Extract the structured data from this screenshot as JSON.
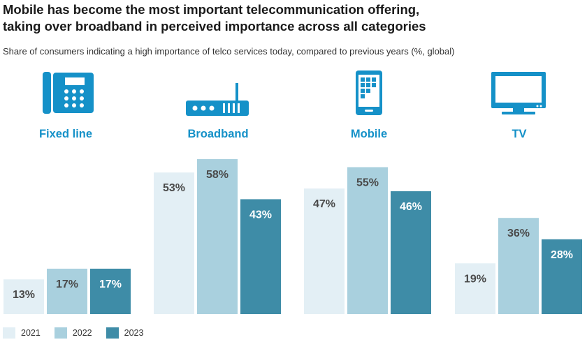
{
  "title": "Mobile has become the most important telecommunication offering,\ntaking over broadband in perceived importance across all categories",
  "subtitle": "Share of consumers indicating a high importance of telco services today, compared to previous years (%, global)",
  "colors": {
    "accent": "#1591c8",
    "series": [
      "#e3eff5",
      "#a9d0de",
      "#3e8ca7"
    ],
    "label_dark": "#4a4a4a",
    "label_light": "#ffffff"
  },
  "icons": [
    "telephone-icon",
    "router-icon",
    "smartphone-icon",
    "tv-icon"
  ],
  "chart_data": {
    "type": "bar",
    "title": "Mobile has become the most important telecommunication offering, taking over broadband in perceived importance across all categories",
    "subtitle": "Share of consumers indicating a high importance of telco services today, compared to previous years (%, global)",
    "categories": [
      "Fixed line",
      "Broadband",
      "Mobile",
      "TV"
    ],
    "series": [
      {
        "name": "2021",
        "values": [
          13,
          53,
          47,
          19
        ],
        "labels": [
          "13%",
          "53%",
          "47%",
          "19%"
        ]
      },
      {
        "name": "2022",
        "values": [
          17,
          58,
          55,
          36
        ],
        "labels": [
          "17%",
          "58%",
          "55%",
          "36%"
        ]
      },
      {
        "name": "2023",
        "values": [
          17,
          43,
          46,
          28
        ],
        "labels": [
          "17%",
          "43%",
          "46%",
          "28%"
        ]
      }
    ],
    "ylim": [
      0,
      58
    ],
    "unit": "%",
    "grid": false,
    "legend": "bottom-left"
  }
}
